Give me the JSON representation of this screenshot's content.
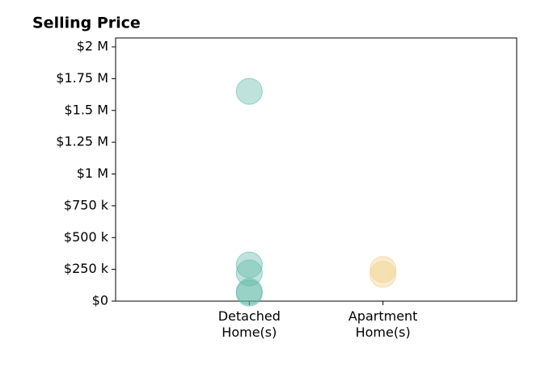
{
  "chart_data": {
    "type": "strip",
    "title": "Selling Price",
    "categories": [
      "Detached Home(s)",
      "Apartment Home(s)"
    ],
    "series": [
      {
        "color": "#5fb8a8",
        "values": [
          1650000,
          285000,
          222000,
          76000,
          63000
        ]
      },
      {
        "color": "#f0cf86",
        "values": [
          250000,
          210000
        ]
      }
    ],
    "ylim": [
      0,
      2070000
    ],
    "yticks": [
      {
        "value": 0,
        "label": "$0"
      },
      {
        "value": 250000,
        "label": "$250 k"
      },
      {
        "value": 500000,
        "label": "$500 k"
      },
      {
        "value": 750000,
        "label": "$750 k"
      },
      {
        "value": 1000000,
        "label": "$1 M"
      },
      {
        "value": 1250000,
        "label": "$1.25 M"
      },
      {
        "value": 1500000,
        "label": "$1.5 M"
      },
      {
        "value": 1750000,
        "label": "$1.75 M"
      },
      {
        "value": 2000000,
        "label": "$2 M"
      }
    ]
  }
}
